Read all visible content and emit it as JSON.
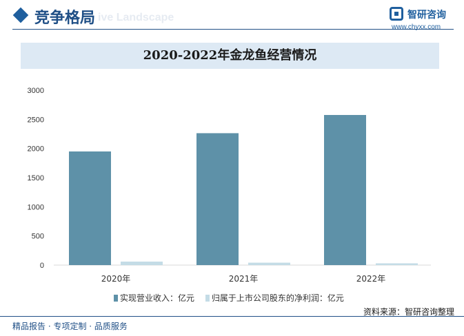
{
  "header": {
    "section_title": "竞争格局",
    "section_watermark": "ive Landscape",
    "brand_name": "智研咨询",
    "brand_url": "www.chyxx.com"
  },
  "chart_data": {
    "type": "bar",
    "title": "2020-2022年金龙鱼经营情况",
    "categories": [
      "2020年",
      "2021年",
      "2022年"
    ],
    "series": [
      {
        "name": "实现营业收入：亿元",
        "values": [
          1949.2,
          2262.5,
          2574.9
        ],
        "color": "#5e91a8"
      },
      {
        "name": "归属于上市公司股东的净利润：亿元",
        "values": [
          60.0,
          41.3,
          29.9
        ],
        "color": "#c4dce6"
      }
    ],
    "ylim": [
      0,
      3000
    ],
    "yticks": [
      0,
      500,
      1000,
      1500,
      2000,
      2500,
      3000
    ],
    "grid": false,
    "legend_position": "bottom"
  },
  "source_text": "资料来源：智研咨询整理",
  "footer_text": "精品报告 · 专项定制 · 品质服务"
}
